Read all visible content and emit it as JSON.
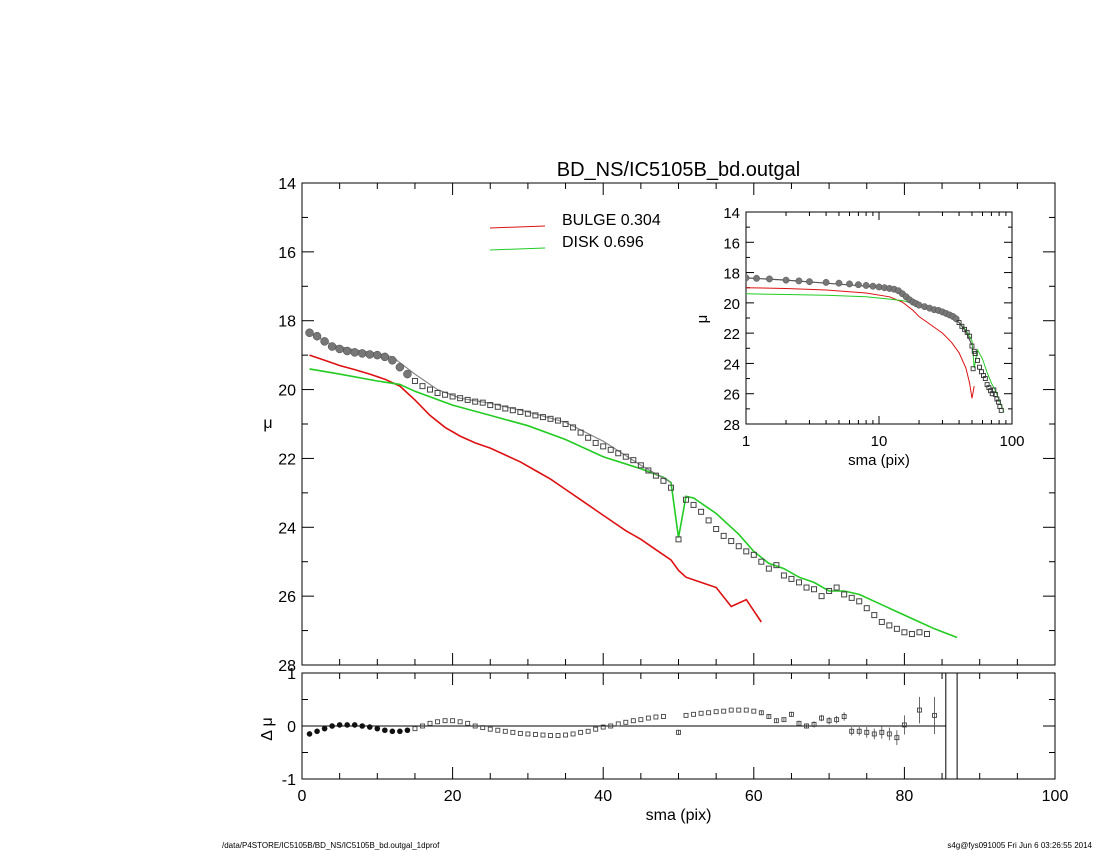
{
  "chart_data": [
    {
      "name": "main-profile",
      "type": "line",
      "title": "BD_NS/IC5105B_bd.outgal",
      "xlabel": "",
      "ylabel": "μ",
      "xlim": [
        0,
        100
      ],
      "ylim": [
        28,
        14
      ],
      "y_inverted": true,
      "yticks": [
        14,
        16,
        18,
        20,
        22,
        24,
        26,
        28
      ],
      "legend_placement": "top-center",
      "legend": [
        {
          "label": "BULGE",
          "value": "0.304",
          "color": "#dd1111"
        },
        {
          "label": "DISK",
          "value": "0.696",
          "color": "#22cc22"
        }
      ],
      "series": [
        {
          "name": "BULGE",
          "color": "#dd1111",
          "x": [
            1,
            3,
            5,
            7,
            9,
            11,
            13,
            15,
            17,
            19,
            21,
            23,
            25,
            27,
            29,
            31,
            33,
            35,
            37,
            39,
            41,
            43,
            45,
            47,
            49,
            50,
            51,
            53,
            55,
            57,
            59,
            61
          ],
          "y": [
            19.0,
            19.15,
            19.3,
            19.42,
            19.55,
            19.7,
            19.9,
            20.3,
            20.75,
            21.1,
            21.35,
            21.55,
            21.7,
            21.9,
            22.1,
            22.35,
            22.6,
            22.9,
            23.2,
            23.5,
            23.8,
            24.1,
            24.35,
            24.65,
            24.95,
            25.25,
            25.45,
            25.6,
            25.75,
            26.3,
            26.1,
            26.75
          ]
        }
      ],
      "series_extra": [
        {
          "name": "DISK",
          "color": "#22cc22",
          "x": [
            1,
            5,
            10,
            13,
            15,
            20,
            25,
            30,
            35,
            40,
            45,
            48,
            49,
            50,
            51,
            52,
            55,
            58,
            60,
            62,
            64,
            66,
            68,
            70,
            72,
            74,
            76,
            78,
            80,
            82,
            84,
            87
          ],
          "y": [
            19.4,
            19.55,
            19.75,
            19.85,
            20.05,
            20.45,
            20.75,
            21.05,
            21.45,
            21.95,
            22.3,
            22.55,
            22.7,
            24.3,
            23.1,
            23.15,
            23.6,
            24.2,
            24.7,
            25.05,
            25.2,
            25.45,
            25.6,
            25.85,
            25.85,
            25.95,
            26.15,
            26.35,
            26.55,
            26.75,
            26.95,
            27.2
          ]
        },
        {
          "name": "model",
          "color": "#888888",
          "x": [
            1,
            4,
            7,
            10,
            12,
            15,
            18,
            21,
            25,
            30,
            35,
            40,
            45,
            49
          ],
          "y": [
            18.35,
            18.7,
            18.85,
            18.95,
            19.05,
            19.55,
            20.0,
            20.25,
            20.4,
            20.65,
            20.95,
            21.5,
            22.2,
            22.7
          ]
        }
      ],
      "data_points": {
        "x": [
          1,
          2,
          3,
          4,
          5,
          6,
          7,
          8,
          9,
          10,
          11,
          12,
          13,
          14,
          15,
          16,
          17,
          18,
          19,
          20,
          21,
          22,
          23,
          24,
          25,
          26,
          27,
          28,
          29,
          30,
          31,
          32,
          33,
          34,
          35,
          36,
          37,
          38,
          39,
          40,
          41,
          42,
          43,
          44,
          45,
          46,
          47,
          48,
          49,
          50,
          51,
          52,
          53,
          54,
          55,
          56,
          57,
          58,
          59,
          60,
          61,
          62,
          63,
          64,
          65,
          66,
          67,
          68,
          69,
          70,
          71,
          72,
          73,
          74,
          75,
          76,
          77,
          78,
          79,
          80,
          81,
          82,
          83
        ],
        "y": [
          18.35,
          18.45,
          18.6,
          18.75,
          18.82,
          18.88,
          18.92,
          18.95,
          18.98,
          19.0,
          19.05,
          19.15,
          19.35,
          19.55,
          19.75,
          19.9,
          20.0,
          20.1,
          20.15,
          20.2,
          20.25,
          20.3,
          20.35,
          20.38,
          20.45,
          20.5,
          20.55,
          20.6,
          20.65,
          20.7,
          20.75,
          20.8,
          20.85,
          20.9,
          21.0,
          21.1,
          21.25,
          21.4,
          21.55,
          21.65,
          21.75,
          21.85,
          21.95,
          22.05,
          22.2,
          22.35,
          22.5,
          22.65,
          22.85,
          24.35,
          23.2,
          23.35,
          23.55,
          23.8,
          24.05,
          24.25,
          24.4,
          24.55,
          24.7,
          24.8,
          25.0,
          25.2,
          25.1,
          25.4,
          25.5,
          25.6,
          25.75,
          25.8,
          26.0,
          25.85,
          25.75,
          25.95,
          26.05,
          26.15,
          26.35,
          26.55,
          26.75,
          26.85,
          26.95,
          27.05,
          27.1,
          27.05,
          27.1
        ]
      },
      "xticks_major": [
        0,
        20,
        40,
        60,
        80,
        100
      ]
    },
    {
      "name": "residuals",
      "type": "scatter",
      "xlabel": "sma (pix)",
      "ylabel": "Δ μ",
      "xlim": [
        0,
        100
      ],
      "ylim": [
        -1,
        1
      ],
      "yticks": [
        -1,
        0,
        1
      ],
      "xticks": [
        0,
        20,
        40,
        60,
        80,
        100
      ],
      "vertical_lines_x": [
        85.5,
        87
      ],
      "points": {
        "x": [
          1,
          2,
          3,
          4,
          5,
          6,
          7,
          8,
          9,
          10,
          11,
          12,
          13,
          14,
          15,
          16,
          17,
          18,
          19,
          20,
          21,
          22,
          23,
          24,
          25,
          26,
          27,
          28,
          29,
          30,
          31,
          32,
          33,
          34,
          35,
          36,
          37,
          38,
          39,
          40,
          41,
          42,
          43,
          44,
          45,
          46,
          47,
          48,
          50,
          51,
          52,
          53,
          54,
          55,
          56,
          57,
          58,
          59,
          60,
          61,
          62,
          63,
          64,
          65,
          66,
          67,
          68,
          69,
          70,
          71,
          72,
          73,
          74,
          75,
          76,
          77,
          78,
          79,
          80,
          82,
          84
        ],
        "y": [
          -0.15,
          -0.1,
          -0.05,
          0.0,
          0.02,
          0.02,
          0.02,
          0.0,
          -0.02,
          -0.05,
          -0.08,
          -0.1,
          -0.1,
          -0.08,
          -0.05,
          0.0,
          0.05,
          0.08,
          0.1,
          0.1,
          0.08,
          0.05,
          0.0,
          -0.03,
          -0.06,
          -0.08,
          -0.1,
          -0.12,
          -0.14,
          -0.15,
          -0.16,
          -0.17,
          -0.18,
          -0.18,
          -0.17,
          -0.15,
          -0.12,
          -0.1,
          -0.06,
          -0.02,
          0.0,
          0.04,
          0.07,
          0.1,
          0.12,
          0.15,
          0.17,
          0.18,
          -0.12,
          0.2,
          0.22,
          0.24,
          0.25,
          0.27,
          0.28,
          0.3,
          0.3,
          0.3,
          0.28,
          0.25,
          0.18,
          0.1,
          0.12,
          0.22,
          0.05,
          0.0,
          0.03,
          0.15,
          0.1,
          0.12,
          0.18,
          -0.1,
          -0.1,
          -0.12,
          -0.15,
          -0.12,
          -0.15,
          -0.22,
          0.02,
          0.3,
          0.2
        ],
        "err": [
          0.02,
          0.02,
          0.02,
          0.02,
          0.02,
          0.02,
          0.02,
          0.02,
          0.02,
          0.02,
          0.02,
          0.02,
          0.02,
          0.02,
          0.02,
          0.02,
          0.02,
          0.02,
          0.02,
          0.02,
          0.02,
          0.02,
          0.02,
          0.02,
          0.02,
          0.02,
          0.02,
          0.02,
          0.02,
          0.02,
          0.02,
          0.02,
          0.02,
          0.02,
          0.02,
          0.02,
          0.02,
          0.02,
          0.02,
          0.02,
          0.02,
          0.02,
          0.02,
          0.02,
          0.02,
          0.02,
          0.02,
          0.02,
          0.05,
          0.03,
          0.03,
          0.03,
          0.03,
          0.03,
          0.03,
          0.03,
          0.03,
          0.03,
          0.03,
          0.04,
          0.04,
          0.04,
          0.04,
          0.05,
          0.05,
          0.05,
          0.06,
          0.06,
          0.07,
          0.07,
          0.08,
          0.08,
          0.08,
          0.1,
          0.1,
          0.12,
          0.12,
          0.14,
          0.18,
          0.25,
          0.35
        ]
      }
    },
    {
      "name": "inset-log",
      "type": "line",
      "xlabel": "sma (pix)",
      "ylabel": "μ",
      "x_log": true,
      "xlim": [
        1,
        100
      ],
      "ylim": [
        28,
        14
      ],
      "y_inverted": true,
      "yticks": [
        14,
        16,
        18,
        20,
        22,
        24,
        26,
        28
      ],
      "xticks": [
        1,
        10,
        100
      ],
      "xtick_labels": [
        "1",
        "10",
        "100"
      ],
      "series": [
        {
          "name": "BULGE",
          "color": "#dd1111",
          "x": [
            1,
            2,
            4,
            8,
            12,
            15,
            18,
            20,
            25,
            30,
            35,
            40,
            45,
            48,
            50,
            52
          ],
          "y": [
            19.0,
            19.05,
            19.15,
            19.35,
            19.6,
            19.95,
            20.5,
            20.9,
            21.5,
            22.0,
            22.6,
            23.3,
            24.3,
            25.3,
            26.3,
            25.5
          ]
        },
        {
          "name": "DISK",
          "color": "#22cc22",
          "x": [
            1,
            2,
            4,
            8,
            12,
            15,
            18,
            20,
            25,
            30,
            35,
            40,
            45,
            50,
            52,
            55,
            60,
            65,
            70,
            75,
            80,
            87
          ],
          "y": [
            19.4,
            19.45,
            19.5,
            19.6,
            19.75,
            19.85,
            20.0,
            20.2,
            20.45,
            20.65,
            20.9,
            21.3,
            21.8,
            22.5,
            24.3,
            23.1,
            23.7,
            24.6,
            25.3,
            25.8,
            26.4,
            27.2
          ]
        },
        {
          "name": "model",
          "color": "#555555",
          "x": [
            1,
            2,
            4,
            8,
            12,
            15,
            18,
            20,
            25,
            30,
            35,
            40,
            45,
            50
          ],
          "y": [
            18.35,
            18.5,
            18.7,
            18.9,
            19.05,
            19.3,
            19.8,
            20.1,
            20.35,
            20.55,
            20.85,
            21.3,
            21.9,
            22.8
          ]
        }
      ],
      "data_points": {
        "x": [
          1,
          1.2,
          1.5,
          2,
          2.5,
          3,
          4,
          5,
          6,
          7,
          8,
          9,
          10,
          11,
          12,
          13,
          14,
          15,
          16,
          17,
          18,
          19,
          20,
          22,
          24,
          26,
          28,
          30,
          32,
          34,
          36,
          38,
          40,
          42,
          44,
          46,
          48,
          50,
          51,
          52,
          53,
          55,
          57,
          59,
          61,
          63,
          65,
          67,
          69,
          71,
          73,
          75,
          77,
          79,
          81,
          83
        ],
        "y": [
          18.35,
          18.38,
          18.42,
          18.5,
          18.55,
          18.6,
          18.65,
          18.7,
          18.75,
          18.8,
          18.85,
          18.9,
          18.95,
          19.0,
          19.05,
          19.1,
          19.2,
          19.4,
          19.6,
          19.8,
          19.95,
          20.05,
          20.15,
          20.25,
          20.35,
          20.45,
          20.5,
          20.6,
          20.7,
          20.8,
          20.9,
          21.05,
          21.3,
          21.55,
          21.75,
          21.95,
          22.2,
          22.85,
          24.35,
          23.2,
          23.35,
          23.8,
          24.25,
          24.55,
          24.8,
          25.0,
          25.4,
          25.6,
          25.8,
          26.0,
          25.75,
          26.05,
          26.35,
          26.55,
          26.85,
          27.1
        ]
      }
    }
  ],
  "footer": {
    "left": "/data/P4STORE/IC5105B/BD_NS/IC5105B_bd.outgal_1dprof",
    "right": "s4g@fys091005  Fri Jun  6 03:26:55 2014"
  }
}
